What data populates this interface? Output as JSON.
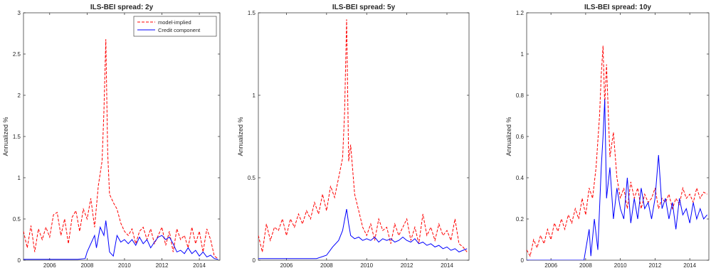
{
  "chart_data": [
    {
      "type": "line",
      "title": "ILS-BEI spread: 2y",
      "ylabel": "Annualized %",
      "xlabel": "",
      "xlim": [
        2004.6,
        2015.1
      ],
      "ylim": [
        0,
        3
      ],
      "xticks": [
        "2006",
        "2008",
        "2010",
        "2012",
        "2014"
      ],
      "yticks": [
        "0",
        "0.5",
        "1",
        "1.5",
        "2",
        "2.5",
        "3"
      ],
      "legend": "top-right",
      "series": [
        {
          "name": "model-implied",
          "color": "#ff0000",
          "dash": "dashed",
          "x": [
            2004.6,
            2004.8,
            2005.0,
            2005.2,
            2005.4,
            2005.6,
            2005.8,
            2006.0,
            2006.2,
            2006.4,
            2006.6,
            2006.8,
            2007.0,
            2007.2,
            2007.4,
            2007.6,
            2007.8,
            2008.0,
            2008.2,
            2008.4,
            2008.6,
            2008.8,
            2008.9,
            2009.0,
            2009.1,
            2009.2,
            2009.4,
            2009.6,
            2009.8,
            2010.0,
            2010.2,
            2010.4,
            2010.6,
            2010.8,
            2011.0,
            2011.2,
            2011.4,
            2011.6,
            2011.8,
            2012.0,
            2012.2,
            2012.4,
            2012.6,
            2012.8,
            2013.0,
            2013.2,
            2013.4,
            2013.6,
            2013.8,
            2014.0,
            2014.2,
            2014.4,
            2014.6,
            2014.8,
            2015.0
          ],
          "y": [
            0.35,
            0.15,
            0.42,
            0.1,
            0.38,
            0.25,
            0.4,
            0.28,
            0.55,
            0.58,
            0.3,
            0.5,
            0.2,
            0.52,
            0.6,
            0.35,
            0.62,
            0.5,
            0.75,
            0.4,
            0.9,
            1.2,
            1.8,
            2.68,
            1.3,
            0.8,
            0.7,
            0.62,
            0.45,
            0.35,
            0.3,
            0.38,
            0.2,
            0.35,
            0.4,
            0.25,
            0.38,
            0.2,
            0.3,
            0.4,
            0.18,
            0.35,
            0.1,
            0.38,
            0.25,
            0.3,
            0.15,
            0.4,
            0.2,
            0.35,
            0.1,
            0.38,
            0.25,
            0.05,
            0.02
          ]
        },
        {
          "name": "Credit component",
          "color": "#0000ff",
          "dash": "solid",
          "x": [
            2004.6,
            2005.5,
            2006.5,
            2007.5,
            2007.9,
            2008.0,
            2008.2,
            2008.4,
            2008.5,
            2008.7,
            2008.9,
            2009.0,
            2009.1,
            2009.2,
            2009.4,
            2009.6,
            2009.8,
            2010.0,
            2010.2,
            2010.4,
            2010.6,
            2010.8,
            2011.0,
            2011.2,
            2011.4,
            2011.6,
            2011.8,
            2012.0,
            2012.2,
            2012.4,
            2012.6,
            2012.8,
            2013.0,
            2013.2,
            2013.4,
            2013.6,
            2013.8,
            2014.0,
            2014.2,
            2014.4,
            2014.6,
            2014.8,
            2015.0
          ],
          "y": [
            0.01,
            0.01,
            0.01,
            0.01,
            0.02,
            0.1,
            0.2,
            0.3,
            0.15,
            0.4,
            0.3,
            0.48,
            0.3,
            0.1,
            0.05,
            0.3,
            0.22,
            0.25,
            0.2,
            0.25,
            0.18,
            0.28,
            0.2,
            0.25,
            0.15,
            0.22,
            0.28,
            0.3,
            0.25,
            0.28,
            0.2,
            0.1,
            0.12,
            0.08,
            0.15,
            0.08,
            0.12,
            0.05,
            0.1,
            0.04,
            0.06,
            0.02,
            0.01
          ]
        }
      ]
    },
    {
      "type": "line",
      "title": "ILS-BEI spread: 5y",
      "ylabel": "Annualized %",
      "xlabel": "",
      "xlim": [
        2004.6,
        2015.1
      ],
      "ylim": [
        0,
        1.5
      ],
      "xticks": [
        "2006",
        "2008",
        "2010",
        "2012",
        "2014"
      ],
      "yticks": [
        "0",
        "0.5",
        "1",
        "1.5"
      ],
      "series": [
        {
          "name": "model-implied",
          "color": "#ff0000",
          "dash": "dashed",
          "x": [
            2004.6,
            2004.8,
            2005.0,
            2005.2,
            2005.4,
            2005.6,
            2005.8,
            2006.0,
            2006.2,
            2006.4,
            2006.6,
            2006.8,
            2007.0,
            2007.2,
            2007.4,
            2007.6,
            2007.8,
            2008.0,
            2008.2,
            2008.4,
            2008.6,
            2008.8,
            2008.9,
            2009.0,
            2009.1,
            2009.2,
            2009.4,
            2009.6,
            2009.8,
            2010.0,
            2010.2,
            2010.4,
            2010.6,
            2010.8,
            2011.0,
            2011.2,
            2011.4,
            2011.6,
            2011.8,
            2012.0,
            2012.2,
            2012.4,
            2012.6,
            2012.8,
            2013.0,
            2013.2,
            2013.4,
            2013.6,
            2013.8,
            2014.0,
            2014.2,
            2014.4,
            2014.6,
            2014.8,
            2015.0
          ],
          "y": [
            0.15,
            0.05,
            0.22,
            0.12,
            0.2,
            0.18,
            0.25,
            0.15,
            0.25,
            0.2,
            0.28,
            0.22,
            0.3,
            0.25,
            0.35,
            0.28,
            0.4,
            0.3,
            0.45,
            0.38,
            0.5,
            0.62,
            0.9,
            1.46,
            0.6,
            0.7,
            0.4,
            0.3,
            0.2,
            0.15,
            0.22,
            0.12,
            0.25,
            0.18,
            0.2,
            0.1,
            0.22,
            0.15,
            0.2,
            0.25,
            0.12,
            0.2,
            0.1,
            0.28,
            0.15,
            0.2,
            0.12,
            0.22,
            0.15,
            0.18,
            0.12,
            0.25,
            0.1,
            0.08,
            0.05
          ]
        },
        {
          "name": "Credit component",
          "color": "#0000ff",
          "dash": "solid",
          "x": [
            2004.6,
            2005.5,
            2006.5,
            2007.5,
            2008.0,
            2008.3,
            2008.6,
            2008.8,
            2009.0,
            2009.1,
            2009.2,
            2009.4,
            2009.6,
            2009.8,
            2010.0,
            2010.2,
            2010.4,
            2010.6,
            2010.8,
            2011.0,
            2011.2,
            2011.4,
            2011.6,
            2011.8,
            2012.0,
            2012.2,
            2012.4,
            2012.6,
            2012.8,
            2013.0,
            2013.2,
            2013.4,
            2013.6,
            2013.8,
            2014.0,
            2014.2,
            2014.4,
            2014.6,
            2014.8,
            2015.0
          ],
          "y": [
            0.01,
            0.01,
            0.01,
            0.01,
            0.03,
            0.08,
            0.12,
            0.18,
            0.31,
            0.22,
            0.15,
            0.13,
            0.14,
            0.12,
            0.13,
            0.12,
            0.14,
            0.11,
            0.13,
            0.12,
            0.13,
            0.11,
            0.12,
            0.14,
            0.12,
            0.11,
            0.13,
            0.1,
            0.11,
            0.09,
            0.1,
            0.08,
            0.09,
            0.07,
            0.08,
            0.06,
            0.07,
            0.05,
            0.06,
            0.07
          ]
        }
      ]
    },
    {
      "type": "line",
      "title": "ILS-BEI spread: 10y",
      "ylabel": "Annualized %",
      "xlabel": "",
      "xlim": [
        2004.6,
        2015.1
      ],
      "ylim": [
        0,
        1.2
      ],
      "xticks": [
        "2006",
        "2008",
        "2010",
        "2012",
        "2014"
      ],
      "yticks": [
        "0",
        "0.2",
        "0.4",
        "0.6",
        "0.8",
        "1",
        "1.2"
      ],
      "series": [
        {
          "name": "model-implied",
          "color": "#ff0000",
          "dash": "dashed",
          "x": [
            2004.6,
            2004.8,
            2005.0,
            2005.2,
            2005.4,
            2005.6,
            2005.8,
            2006.0,
            2006.2,
            2006.4,
            2006.6,
            2006.8,
            2007.0,
            2007.2,
            2007.4,
            2007.6,
            2007.8,
            2008.0,
            2008.2,
            2008.4,
            2008.6,
            2008.8,
            2008.9,
            2009.0,
            2009.1,
            2009.2,
            2009.4,
            2009.6,
            2009.8,
            2010.0,
            2010.2,
            2010.4,
            2010.6,
            2010.8,
            2011.0,
            2011.2,
            2011.4,
            2011.6,
            2011.8,
            2012.0,
            2012.2,
            2012.4,
            2012.6,
            2012.8,
            2013.0,
            2013.2,
            2013.4,
            2013.6,
            2013.8,
            2014.0,
            2014.2,
            2014.4,
            2014.6,
            2014.8,
            2015.0
          ],
          "y": [
            0.05,
            0.02,
            0.1,
            0.06,
            0.12,
            0.08,
            0.15,
            0.1,
            0.18,
            0.14,
            0.2,
            0.15,
            0.22,
            0.18,
            0.25,
            0.2,
            0.3,
            0.22,
            0.35,
            0.3,
            0.45,
            0.7,
            0.9,
            1.04,
            0.75,
            0.95,
            0.5,
            0.62,
            0.4,
            0.3,
            0.35,
            0.25,
            0.38,
            0.3,
            0.35,
            0.25,
            0.32,
            0.28,
            0.3,
            0.35,
            0.25,
            0.3,
            0.28,
            0.32,
            0.25,
            0.3,
            0.27,
            0.35,
            0.3,
            0.32,
            0.28,
            0.35,
            0.3,
            0.33,
            0.32
          ]
        },
        {
          "name": "Credit component",
          "color": "#0000ff",
          "dash": "solid",
          "x": [
            2004.6,
            2005.5,
            2006.5,
            2007.5,
            2007.9,
            2008.0,
            2008.2,
            2008.3,
            2008.5,
            2008.7,
            2008.8,
            2008.9,
            2009.0,
            2009.1,
            2009.2,
            2009.4,
            2009.6,
            2009.8,
            2010.0,
            2010.2,
            2010.4,
            2010.6,
            2010.8,
            2011.0,
            2011.2,
            2011.4,
            2011.6,
            2011.8,
            2012.0,
            2012.2,
            2012.4,
            2012.6,
            2012.8,
            2013.0,
            2013.2,
            2013.4,
            2013.6,
            2013.8,
            2014.0,
            2014.2,
            2014.4,
            2014.6,
            2014.8,
            2015.0
          ],
          "y": [
            0.0,
            0.0,
            0.0,
            0.0,
            0.0,
            0.05,
            0.15,
            0.02,
            0.2,
            0.05,
            0.25,
            0.45,
            0.6,
            0.78,
            0.3,
            0.45,
            0.2,
            0.35,
            0.25,
            0.2,
            0.4,
            0.18,
            0.3,
            0.2,
            0.35,
            0.25,
            0.28,
            0.2,
            0.3,
            0.51,
            0.25,
            0.3,
            0.2,
            0.28,
            0.15,
            0.3,
            0.22,
            0.25,
            0.18,
            0.28,
            0.2,
            0.25,
            0.2,
            0.22
          ]
        }
      ]
    }
  ]
}
